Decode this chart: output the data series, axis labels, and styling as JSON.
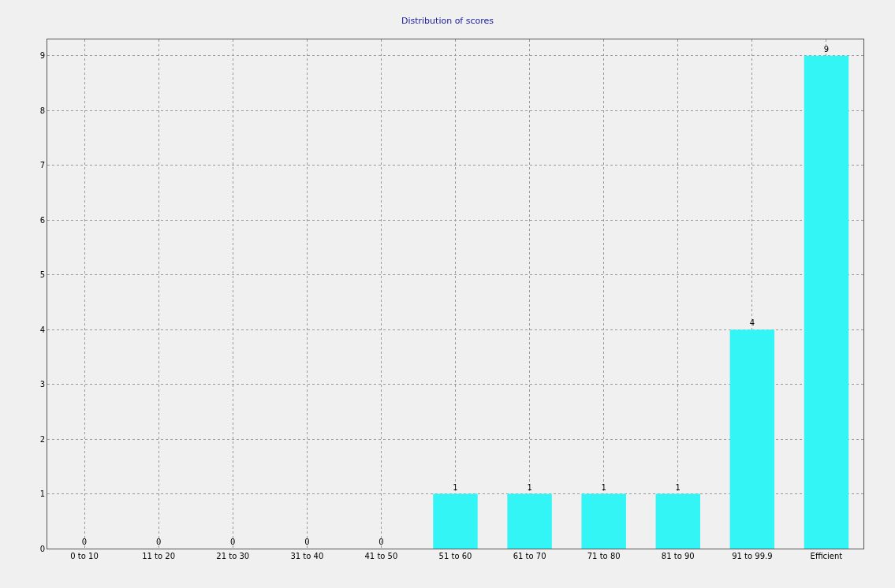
{
  "chart_data": {
    "type": "bar",
    "title": "Distribution of scores",
    "categories": [
      "0 to 10",
      "11 to 20",
      "21 to 30",
      "31 to 40",
      "41 to 50",
      "51 to 60",
      "61 to 70",
      "71 to 80",
      "81 to 90",
      "91 to 99.9",
      "Efficient"
    ],
    "values": [
      0,
      0,
      0,
      0,
      0,
      1,
      1,
      1,
      1,
      4,
      9
    ],
    "color": "#33f5f5",
    "ylim": [
      0,
      9.3
    ],
    "yticks": [
      0,
      1,
      2,
      3,
      4,
      5,
      6,
      7,
      8,
      9
    ],
    "grid": true,
    "data_labels": true
  }
}
